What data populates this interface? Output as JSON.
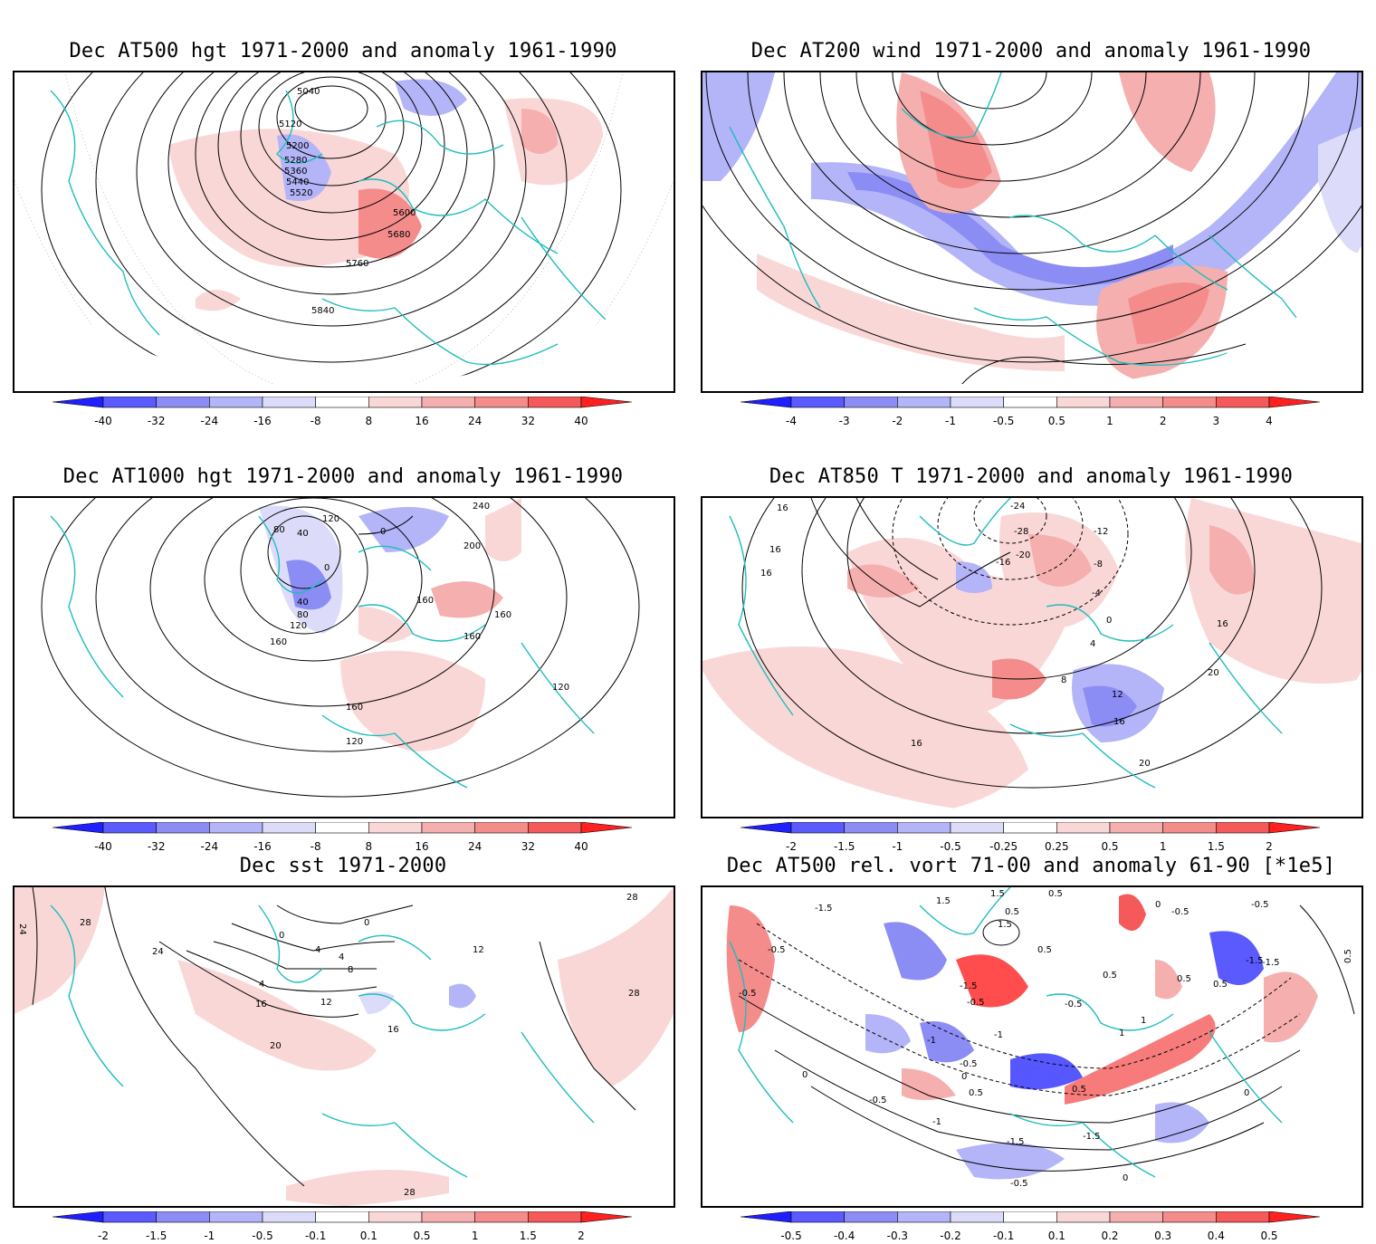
{
  "colors": {
    "blue_strong": "#1f1fff",
    "blue_2": "#5a5aff",
    "blue_3": "#8c8cf5",
    "blue_4": "#b4b4f8",
    "blue_light": "#dcdcfa",
    "white": "#ffffff",
    "red_light": "#fad7d7",
    "red_4": "#f5afaf",
    "red_3": "#f58c8c",
    "red_2": "#f55a5a",
    "red_strong": "#ff2020",
    "coast": "#1fbdbd",
    "contour": "#000000"
  },
  "panels": [
    {
      "title": "Dec AT500 hgt 1971-2000 and anomaly 1961-1990",
      "contour_labels": [
        "5040",
        "5120",
        "5200",
        "5280",
        "5360",
        "5440",
        "5520",
        "5600",
        "5680",
        "5760",
        "5840"
      ],
      "colorbar_labels": [
        "-40",
        "-32",
        "-24",
        "-16",
        "-8",
        "8",
        "16",
        "24",
        "32",
        "40"
      ]
    },
    {
      "title": "Dec AT200 wind 1971-2000 and anomaly 1961-1990",
      "contour_labels": [],
      "colorbar_labels": [
        "-4",
        "-3",
        "-2",
        "-1",
        "-0.5",
        "0.5",
        "1",
        "2",
        "3",
        "4"
      ]
    },
    {
      "title": "Dec AT1000 hgt 1971-2000 and anomaly 1961-1990",
      "contour_labels": [
        "240",
        "200",
        "80",
        "40",
        "120",
        "0",
        "0",
        "40",
        "80",
        "120",
        "160",
        "160",
        "160",
        "160",
        "120",
        "160",
        "120"
      ],
      "colorbar_labels": [
        "-40",
        "-32",
        "-24",
        "-16",
        "-8",
        "8",
        "16",
        "24",
        "32",
        "40"
      ]
    },
    {
      "title": "Dec AT850 T 1971-2000 and anomaly 1961-1990",
      "contour_labels": [
        "16",
        "16",
        "16",
        "-24",
        "-28",
        "-12",
        "-20",
        "-16",
        "-8",
        "-4",
        "0",
        "4",
        "8",
        "12",
        "16",
        "16",
        "20",
        "16",
        "20"
      ],
      "colorbar_labels": [
        "-2",
        "-1.5",
        "-1",
        "-0.5",
        "-0.25",
        "0.25",
        "0.5",
        "1",
        "1.5",
        "2"
      ]
    },
    {
      "title": "Dec sst 1971-2000",
      "contour_labels": [
        "28",
        "24",
        "28",
        "24",
        "0",
        "0",
        "4",
        "4",
        "8",
        "4",
        "12",
        "16",
        "12",
        "16",
        "20",
        "28",
        "28"
      ],
      "colorbar_labels": [
        "-2",
        "-1.5",
        "-1",
        "-0.5",
        "-0.1",
        "0.1",
        "0.5",
        "1",
        "1.5",
        "2"
      ]
    },
    {
      "title": "Dec AT500 rel. vort 71-00 and anomaly 61-90 [*1e5]",
      "contour_labels": [
        "-1.5",
        "1.5",
        "1.5",
        "0.5",
        "0.5",
        "0",
        "-0.5",
        "-0.5",
        "1.5",
        "-1.5",
        "-0.5",
        "0.5",
        "-0.5",
        "-0.5",
        "0.5",
        "-0.5",
        "-1",
        "-1.5",
        "0.5",
        "0.5",
        "-1",
        "-0.5",
        "0",
        "1",
        "0",
        "-0.5",
        "0.5",
        "0.5",
        "-1",
        "-1.5",
        "-1.5",
        "-1.5",
        "-0.5",
        "0",
        "0",
        "1",
        "0.5"
      ],
      "colorbar_labels": [
        "-0.5",
        "-0.4",
        "-0.3",
        "-0.2",
        "-0.1",
        "0.1",
        "0.2",
        "0.3",
        "0.4",
        "0.5"
      ]
    }
  ]
}
